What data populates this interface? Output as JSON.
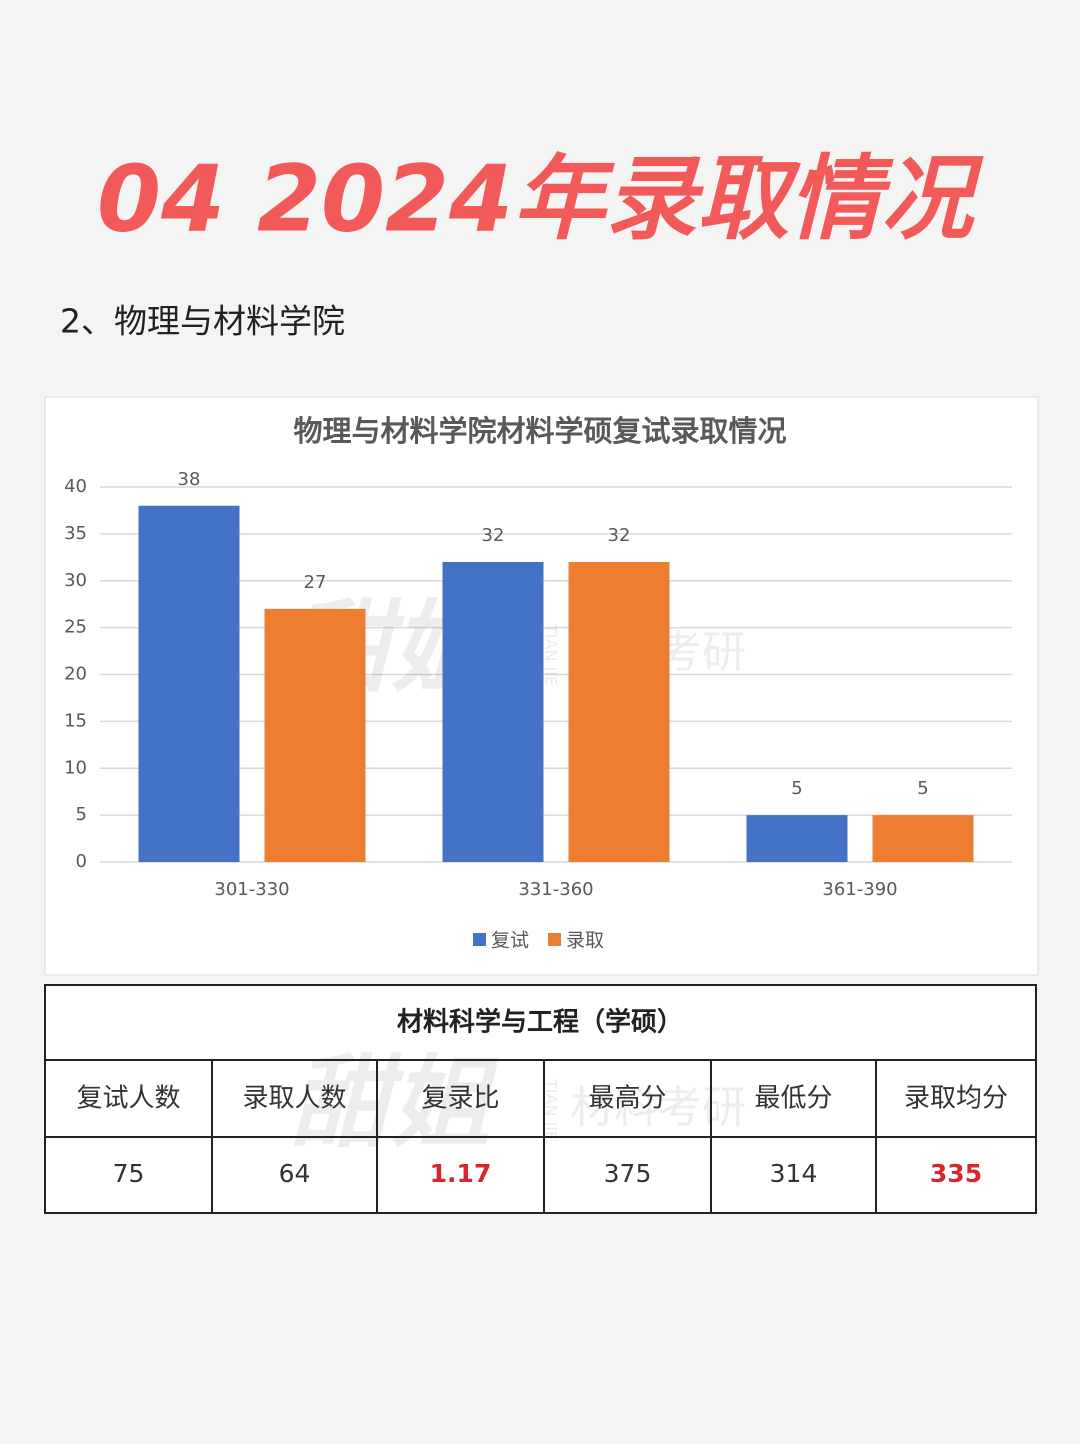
{
  "header": {
    "title": "04 2024年录取情况",
    "subtitle": "2、物理与材料学院"
  },
  "chart_data": {
    "type": "bar",
    "title": "物理与材料学院材料学硕复试录取情况",
    "categories": [
      "301-330",
      "331-360",
      "361-390"
    ],
    "series": [
      {
        "name": "复试",
        "color": "#4472c4",
        "values": [
          38,
          32,
          5
        ]
      },
      {
        "name": "录取",
        "color": "#ed7d31",
        "values": [
          27,
          32,
          5
        ]
      }
    ],
    "ylim": [
      0,
      40
    ],
    "yticks": [
      0,
      5,
      10,
      15,
      20,
      25,
      30,
      35,
      40
    ],
    "grid": true,
    "legend": "bottom"
  },
  "table": {
    "title": "材料科学与工程（学硕）",
    "header": [
      "复试人数",
      "录取人数",
      "复录比",
      "最高分",
      "最低分",
      "录取均分"
    ],
    "values": [
      75,
      64,
      1.17,
      375,
      314,
      335
    ],
    "value_colors": [
      "#333333",
      "#333333",
      "#d9262c",
      "#333333",
      "#333333",
      "#d9262c"
    ]
  },
  "watermark": {
    "main": "甜姐",
    "side": "材料考研",
    "pinyin": "TIAN JIE"
  }
}
